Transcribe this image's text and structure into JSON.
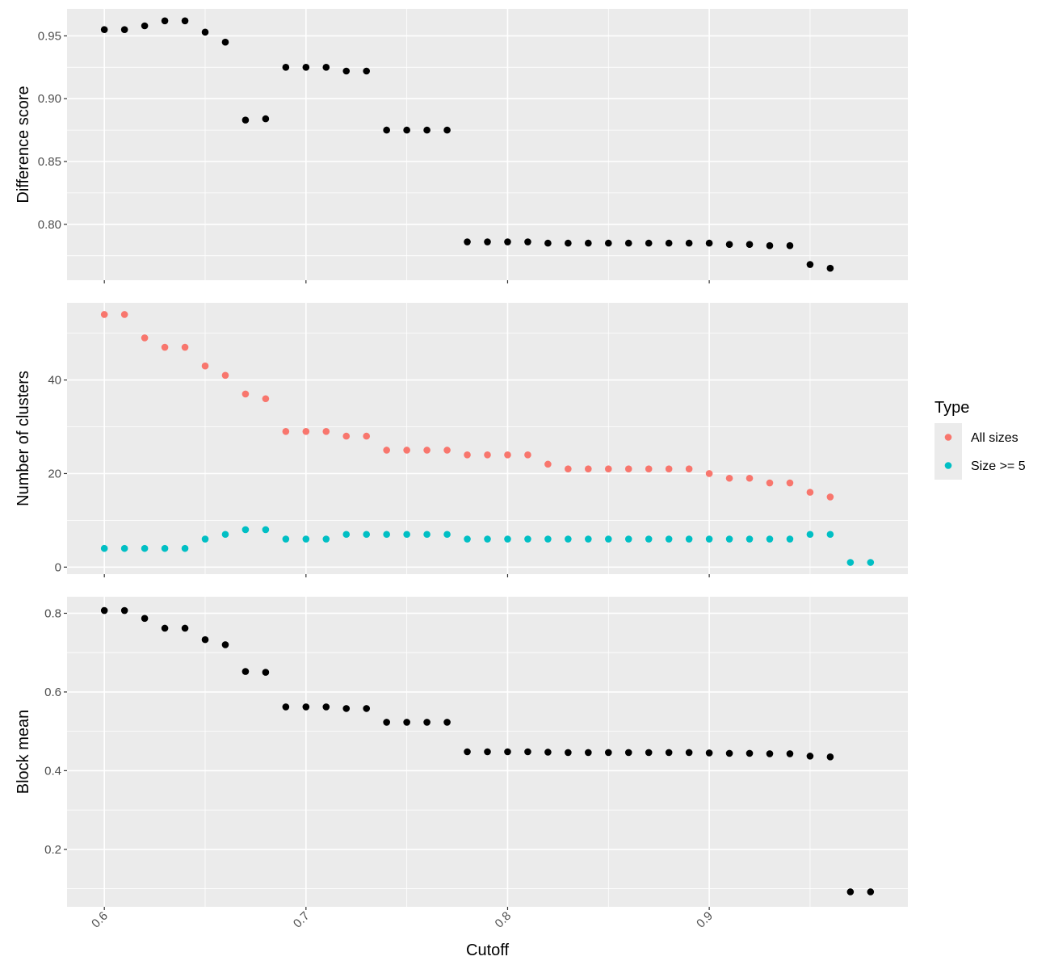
{
  "chart_data": {
    "type": "scatter",
    "xlabel": "Cutoff",
    "x_ticks": [
      0.6,
      0.7,
      0.8,
      0.9
    ],
    "x_tick_labels": [
      "0.6",
      "0.7",
      "0.8",
      "0.9"
    ],
    "xlim": [
      0.5815,
      0.9985
    ],
    "grid": true,
    "colors": {
      "panel_bg": "#EBEBEB",
      "grid": "#FFFFFF",
      "point_default": "#000000"
    },
    "legend": {
      "title": "Type",
      "placement": "right",
      "entries": [
        {
          "label": "All sizes",
          "color": "#F8766D"
        },
        {
          "label": "Size >= 5",
          "color": "#00BFC4"
        }
      ]
    },
    "panels": [
      {
        "ylabel": "Difference score",
        "ylim": [
          0.7555,
          0.9715
        ],
        "y_ticks": [
          0.8,
          0.85,
          0.9,
          0.95
        ],
        "y_tick_labels": [
          "0.80",
          "0.85",
          "0.90",
          "0.95"
        ],
        "series": [
          {
            "color": "#000000",
            "x": [
              0.6,
              0.61,
              0.62,
              0.63,
              0.64,
              0.65,
              0.66,
              0.67,
              0.68,
              0.69,
              0.7,
              0.71,
              0.72,
              0.73,
              0.74,
              0.75,
              0.76,
              0.77,
              0.78,
              0.79,
              0.8,
              0.81,
              0.82,
              0.83,
              0.84,
              0.85,
              0.86,
              0.87,
              0.88,
              0.89,
              0.9,
              0.91,
              0.92,
              0.93,
              0.94,
              0.95,
              0.96
            ],
            "y": [
              0.955,
              0.955,
              0.958,
              0.962,
              0.962,
              0.953,
              0.945,
              0.883,
              0.884,
              0.925,
              0.925,
              0.925,
              0.922,
              0.922,
              0.875,
              0.875,
              0.875,
              0.875,
              0.786,
              0.786,
              0.786,
              0.786,
              0.785,
              0.785,
              0.785,
              0.785,
              0.785,
              0.785,
              0.785,
              0.785,
              0.785,
              0.784,
              0.784,
              0.783,
              0.783,
              0.768,
              0.765
            ]
          }
        ]
      },
      {
        "ylabel": "Number of clusters",
        "ylim": [
          -1.5,
          56.5
        ],
        "y_ticks": [
          0,
          20,
          40
        ],
        "y_tick_labels": [
          "0",
          "20",
          "40"
        ],
        "series": [
          {
            "name": "All sizes",
            "color": "#F8766D",
            "x": [
              0.6,
              0.61,
              0.62,
              0.63,
              0.64,
              0.65,
              0.66,
              0.67,
              0.68,
              0.69,
              0.7,
              0.71,
              0.72,
              0.73,
              0.74,
              0.75,
              0.76,
              0.77,
              0.78,
              0.79,
              0.8,
              0.81,
              0.82,
              0.83,
              0.84,
              0.85,
              0.86,
              0.87,
              0.88,
              0.89,
              0.9,
              0.91,
              0.92,
              0.93,
              0.94,
              0.95,
              0.96
            ],
            "y": [
              54,
              54,
              49,
              47,
              47,
              43,
              41,
              37,
              36,
              29,
              29,
              29,
              28,
              28,
              25,
              25,
              25,
              25,
              24,
              24,
              24,
              24,
              22,
              21,
              21,
              21,
              21,
              21,
              21,
              21,
              20,
              19,
              19,
              18,
              18,
              16,
              15
            ]
          },
          {
            "name": "Size >= 5",
            "color": "#00BFC4",
            "x": [
              0.6,
              0.61,
              0.62,
              0.63,
              0.64,
              0.65,
              0.66,
              0.67,
              0.68,
              0.69,
              0.7,
              0.71,
              0.72,
              0.73,
              0.74,
              0.75,
              0.76,
              0.77,
              0.78,
              0.79,
              0.8,
              0.81,
              0.82,
              0.83,
              0.84,
              0.85,
              0.86,
              0.87,
              0.88,
              0.89,
              0.9,
              0.91,
              0.92,
              0.93,
              0.94,
              0.95,
              0.96,
              0.97,
              0.98
            ],
            "y": [
              4,
              4,
              4,
              4,
              4,
              6,
              7,
              8,
              8,
              6,
              6,
              6,
              7,
              7,
              7,
              7,
              7,
              7,
              6,
              6,
              6,
              6,
              6,
              6,
              6,
              6,
              6,
              6,
              6,
              6,
              6,
              6,
              6,
              6,
              6,
              7,
              7,
              1,
              1
            ]
          }
        ]
      },
      {
        "ylabel": "Block mean",
        "ylim": [
          0.054,
          0.842
        ],
        "y_ticks": [
          0.2,
          0.4,
          0.6,
          0.8
        ],
        "y_tick_labels": [
          "0.2",
          "0.4",
          "0.6",
          "0.8"
        ],
        "series": [
          {
            "color": "#000000",
            "x": [
              0.6,
              0.61,
              0.62,
              0.63,
              0.64,
              0.65,
              0.66,
              0.67,
              0.68,
              0.69,
              0.7,
              0.71,
              0.72,
              0.73,
              0.74,
              0.75,
              0.76,
              0.77,
              0.78,
              0.79,
              0.8,
              0.81,
              0.82,
              0.83,
              0.84,
              0.85,
              0.86,
              0.87,
              0.88,
              0.89,
              0.9,
              0.91,
              0.92,
              0.93,
              0.94,
              0.95,
              0.96,
              0.97,
              0.98
            ],
            "y": [
              0.807,
              0.807,
              0.787,
              0.762,
              0.762,
              0.733,
              0.72,
              0.652,
              0.65,
              0.562,
              0.562,
              0.562,
              0.558,
              0.558,
              0.523,
              0.523,
              0.523,
              0.523,
              0.448,
              0.448,
              0.448,
              0.448,
              0.447,
              0.446,
              0.446,
              0.446,
              0.446,
              0.446,
              0.446,
              0.446,
              0.445,
              0.444,
              0.444,
              0.443,
              0.443,
              0.437,
              0.435,
              0.092,
              0.092
            ]
          }
        ]
      }
    ]
  }
}
